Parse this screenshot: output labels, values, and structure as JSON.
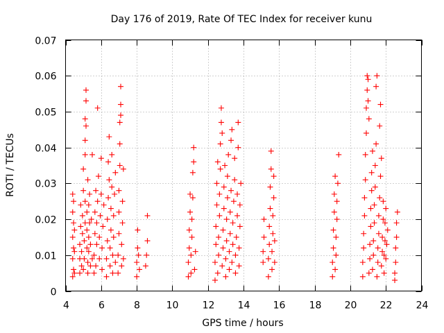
{
  "chart_data": {
    "type": "scatter",
    "title": "Day 176 of 2019, Rate Of TEC Index for receiver kunu",
    "xlabel": "GPS time / hours",
    "ylabel": "ROTI / TECUs",
    "xlim": [
      4,
      24
    ],
    "ylim": [
      0,
      0.07
    ],
    "xticks": [
      4,
      6,
      8,
      10,
      12,
      14,
      16,
      18,
      20,
      22,
      24
    ],
    "xtick_labels": [
      "4",
      "6",
      "8",
      "10",
      "12",
      "14",
      "16",
      "18",
      "20",
      "22",
      "24"
    ],
    "yticks": [
      0,
      0.01,
      0.02,
      0.03,
      0.04,
      0.05,
      0.06,
      0.07
    ],
    "ytick_labels": [
      "0",
      "0.01",
      "0.02",
      "0.03",
      "0.04",
      "0.05",
      "0.06",
      "0.07"
    ],
    "grid": true,
    "marker": "+",
    "color": "#ff0000",
    "series": [
      {
        "name": "ROTI",
        "points": [
          [
            4.4,
            0.004
          ],
          [
            4.4,
            0.009
          ],
          [
            4.4,
            0.015
          ],
          [
            4.4,
            0.022
          ],
          [
            4.4,
            0.027
          ],
          [
            4.45,
            0.006
          ],
          [
            4.45,
            0.012
          ],
          [
            4.45,
            0.019
          ],
          [
            4.45,
            0.025
          ],
          [
            4.5,
            0.005
          ],
          [
            4.5,
            0.011
          ],
          [
            4.5,
            0.017
          ],
          [
            4.8,
            0.005
          ],
          [
            4.8,
            0.009
          ],
          [
            4.8,
            0.013
          ],
          [
            4.85,
            0.018
          ],
          [
            4.85,
            0.024
          ],
          [
            4.9,
            0.007
          ],
          [
            4.9,
            0.011
          ],
          [
            4.95,
            0.016
          ],
          [
            4.95,
            0.021
          ],
          [
            5.0,
            0.028
          ],
          [
            5.0,
            0.034
          ],
          [
            5.0,
            0.006
          ],
          [
            5.05,
            0.009
          ],
          [
            5.05,
            0.014
          ],
          [
            5.1,
            0.019
          ],
          [
            5.1,
            0.025
          ],
          [
            5.1,
            0.038
          ],
          [
            5.1,
            0.042
          ],
          [
            5.1,
            0.048
          ],
          [
            5.15,
            0.053
          ],
          [
            5.15,
            0.056
          ],
          [
            5.15,
            0.046
          ],
          [
            5.2,
            0.012
          ],
          [
            5.2,
            0.017
          ],
          [
            5.2,
            0.022
          ],
          [
            5.25,
            0.005
          ],
          [
            5.25,
            0.008
          ],
          [
            5.25,
            0.031
          ],
          [
            5.3,
            0.024
          ],
          [
            5.3,
            0.015
          ],
          [
            5.3,
            0.011
          ],
          [
            5.35,
            0.019
          ],
          [
            5.35,
            0.027
          ],
          [
            5.4,
            0.007
          ],
          [
            5.4,
            0.013
          ],
          [
            5.45,
            0.02
          ],
          [
            5.5,
            0.038
          ],
          [
            5.5,
            0.009
          ],
          [
            5.6,
            0.005
          ],
          [
            5.6,
            0.01
          ],
          [
            5.65,
            0.016
          ],
          [
            5.65,
            0.022
          ],
          [
            5.7,
            0.028
          ],
          [
            5.7,
            0.007
          ],
          [
            5.75,
            0.013
          ],
          [
            5.75,
            0.019
          ],
          [
            5.8,
            0.025
          ],
          [
            5.8,
            0.051
          ],
          [
            5.85,
            0.032
          ],
          [
            5.9,
            0.009
          ],
          [
            5.9,
            0.015
          ],
          [
            5.95,
            0.021
          ],
          [
            6.0,
            0.027
          ],
          [
            6.0,
            0.037
          ],
          [
            6.05,
            0.006
          ],
          [
            6.05,
            0.012
          ],
          [
            6.1,
            0.018
          ],
          [
            6.15,
            0.024
          ],
          [
            6.3,
            0.004
          ],
          [
            6.3,
            0.009
          ],
          [
            6.35,
            0.014
          ],
          [
            6.35,
            0.02
          ],
          [
            6.4,
            0.026
          ],
          [
            6.4,
            0.036
          ],
          [
            6.45,
            0.043
          ],
          [
            6.45,
            0.031
          ],
          [
            6.5,
            0.007
          ],
          [
            6.5,
            0.012
          ],
          [
            6.55,
            0.017
          ],
          [
            6.55,
            0.023
          ],
          [
            6.6,
            0.029
          ],
          [
            6.6,
            0.038
          ],
          [
            6.65,
            0.005
          ],
          [
            6.65,
            0.01
          ],
          [
            6.7,
            0.015
          ],
          [
            6.7,
            0.021
          ],
          [
            6.75,
            0.027
          ],
          [
            6.8,
            0.033
          ],
          [
            6.8,
            0.008
          ],
          [
            6.95,
            0.005
          ],
          [
            6.95,
            0.01
          ],
          [
            7.0,
            0.016
          ],
          [
            7.0,
            0.022
          ],
          [
            7.0,
            0.028
          ],
          [
            7.05,
            0.035
          ],
          [
            7.05,
            0.041
          ],
          [
            7.05,
            0.047
          ],
          [
            7.1,
            0.052
          ],
          [
            7.1,
            0.057
          ],
          [
            7.1,
            0.049
          ],
          [
            7.15,
            0.007
          ],
          [
            7.15,
            0.013
          ],
          [
            7.2,
            0.019
          ],
          [
            7.2,
            0.025
          ],
          [
            7.25,
            0.034
          ],
          [
            7.25,
            0.009
          ],
          [
            8.0,
            0.004
          ],
          [
            8.0,
            0.008
          ],
          [
            8.05,
            0.012
          ],
          [
            8.05,
            0.017
          ],
          [
            8.1,
            0.01
          ],
          [
            8.15,
            0.006
          ],
          [
            8.5,
            0.007
          ],
          [
            8.55,
            0.01
          ],
          [
            8.6,
            0.014
          ],
          [
            8.6,
            0.021
          ],
          [
            10.9,
            0.004
          ],
          [
            10.9,
            0.008
          ],
          [
            10.95,
            0.012
          ],
          [
            10.95,
            0.017
          ],
          [
            11.0,
            0.022
          ],
          [
            11.0,
            0.027
          ],
          [
            11.05,
            0.005
          ],
          [
            11.05,
            0.01
          ],
          [
            11.1,
            0.015
          ],
          [
            11.1,
            0.02
          ],
          [
            11.15,
            0.026
          ],
          [
            11.15,
            0.033
          ],
          [
            11.2,
            0.04
          ],
          [
            11.2,
            0.036
          ],
          [
            11.25,
            0.006
          ],
          [
            11.3,
            0.011
          ],
          [
            12.4,
            0.003
          ],
          [
            12.4,
            0.008
          ],
          [
            12.45,
            0.013
          ],
          [
            12.45,
            0.018
          ],
          [
            12.5,
            0.024
          ],
          [
            12.5,
            0.03
          ],
          [
            12.55,
            0.036
          ],
          [
            12.55,
            0.005
          ],
          [
            12.6,
            0.01
          ],
          [
            12.6,
            0.015
          ],
          [
            12.65,
            0.021
          ],
          [
            12.65,
            0.027
          ],
          [
            12.7,
            0.034
          ],
          [
            12.7,
            0.041
          ],
          [
            12.75,
            0.047
          ],
          [
            12.75,
            0.051
          ],
          [
            12.8,
            0.044
          ],
          [
            12.8,
            0.007
          ],
          [
            12.85,
            0.012
          ],
          [
            12.85,
            0.017
          ],
          [
            12.9,
            0.023
          ],
          [
            12.9,
            0.029
          ],
          [
            12.95,
            0.035
          ],
          [
            13.0,
            0.004
          ],
          [
            13.0,
            0.009
          ],
          [
            13.05,
            0.014
          ],
          [
            13.05,
            0.02
          ],
          [
            13.1,
            0.026
          ],
          [
            13.1,
            0.032
          ],
          [
            13.15,
            0.038
          ],
          [
            13.2,
            0.006
          ],
          [
            13.2,
            0.011
          ],
          [
            13.25,
            0.016
          ],
          [
            13.25,
            0.022
          ],
          [
            13.3,
            0.028
          ],
          [
            13.3,
            0.042
          ],
          [
            13.35,
            0.045
          ],
          [
            13.35,
            0.008
          ],
          [
            13.4,
            0.013
          ],
          [
            13.4,
            0.019
          ],
          [
            13.45,
            0.025
          ],
          [
            13.5,
            0.031
          ],
          [
            13.5,
            0.037
          ],
          [
            13.55,
            0.005
          ],
          [
            13.55,
            0.01
          ],
          [
            13.6,
            0.015
          ],
          [
            13.65,
            0.021
          ],
          [
            13.65,
            0.027
          ],
          [
            13.7,
            0.047
          ],
          [
            13.7,
            0.04
          ],
          [
            13.75,
            0.007
          ],
          [
            13.75,
            0.012
          ],
          [
            13.8,
            0.018
          ],
          [
            13.8,
            0.024
          ],
          [
            13.85,
            0.03
          ],
          [
            15.1,
            0.008
          ],
          [
            15.1,
            0.011
          ],
          [
            15.15,
            0.015
          ],
          [
            15.15,
            0.02
          ],
          [
            15.4,
            0.004
          ],
          [
            15.4,
            0.009
          ],
          [
            15.45,
            0.013
          ],
          [
            15.45,
            0.018
          ],
          [
            15.5,
            0.023
          ],
          [
            15.5,
            0.029
          ],
          [
            15.55,
            0.034
          ],
          [
            15.55,
            0.039
          ],
          [
            15.6,
            0.006
          ],
          [
            15.6,
            0.011
          ],
          [
            15.65,
            0.016
          ],
          [
            15.65,
            0.021
          ],
          [
            15.7,
            0.026
          ],
          [
            15.7,
            0.032
          ],
          [
            15.75,
            0.008
          ],
          [
            15.75,
            0.014
          ],
          [
            19.0,
            0.004
          ],
          [
            19.0,
            0.008
          ],
          [
            19.05,
            0.012
          ],
          [
            19.05,
            0.017
          ],
          [
            19.1,
            0.022
          ],
          [
            19.1,
            0.027
          ],
          [
            19.15,
            0.032
          ],
          [
            19.15,
            0.006
          ],
          [
            19.2,
            0.01
          ],
          [
            19.2,
            0.015
          ],
          [
            19.25,
            0.02
          ],
          [
            19.25,
            0.025
          ],
          [
            19.3,
            0.03
          ],
          [
            19.35,
            0.038
          ],
          [
            20.7,
            0.004
          ],
          [
            20.7,
            0.008
          ],
          [
            20.75,
            0.012
          ],
          [
            20.75,
            0.016
          ],
          [
            20.8,
            0.021
          ],
          [
            20.8,
            0.026
          ],
          [
            20.85,
            0.031
          ],
          [
            20.85,
            0.038
          ],
          [
            20.9,
            0.044
          ],
          [
            20.9,
            0.051
          ],
          [
            20.95,
            0.056
          ],
          [
            20.95,
            0.06
          ],
          [
            21.0,
            0.059
          ],
          [
            21.0,
            0.053
          ],
          [
            21.05,
            0.048
          ],
          [
            21.05,
            0.005
          ],
          [
            21.1,
            0.009
          ],
          [
            21.1,
            0.013
          ],
          [
            21.15,
            0.018
          ],
          [
            21.15,
            0.023
          ],
          [
            21.2,
            0.028
          ],
          [
            21.2,
            0.033
          ],
          [
            21.25,
            0.039
          ],
          [
            21.25,
            0.006
          ],
          [
            21.3,
            0.01
          ],
          [
            21.3,
            0.014
          ],
          [
            21.35,
            0.019
          ],
          [
            21.35,
            0.024
          ],
          [
            21.4,
            0.029
          ],
          [
            21.4,
            0.035
          ],
          [
            21.45,
            0.041
          ],
          [
            21.45,
            0.057
          ],
          [
            21.5,
            0.06
          ],
          [
            21.5,
            0.004
          ],
          [
            21.55,
            0.008
          ],
          [
            21.55,
            0.012
          ],
          [
            21.6,
            0.016
          ],
          [
            21.6,
            0.021
          ],
          [
            21.65,
            0.026
          ],
          [
            21.65,
            0.046
          ],
          [
            21.7,
            0.052
          ],
          [
            21.7,
            0.032
          ],
          [
            21.75,
            0.037
          ],
          [
            21.75,
            0.007
          ],
          [
            21.8,
            0.011
          ],
          [
            21.8,
            0.015
          ],
          [
            21.85,
            0.02
          ],
          [
            21.85,
            0.025
          ],
          [
            21.9,
            0.005
          ],
          [
            21.9,
            0.01
          ],
          [
            21.95,
            0.014
          ],
          [
            21.95,
            0.019
          ],
          [
            22.0,
            0.023
          ],
          [
            22.0,
            0.009
          ],
          [
            22.05,
            0.013
          ],
          [
            22.1,
            0.017
          ],
          [
            22.5,
            0.003
          ],
          [
            22.5,
            0.005
          ],
          [
            22.55,
            0.008
          ],
          [
            22.55,
            0.012
          ],
          [
            22.6,
            0.015
          ],
          [
            22.6,
            0.019
          ],
          [
            22.65,
            0.022
          ]
        ]
      }
    ]
  }
}
